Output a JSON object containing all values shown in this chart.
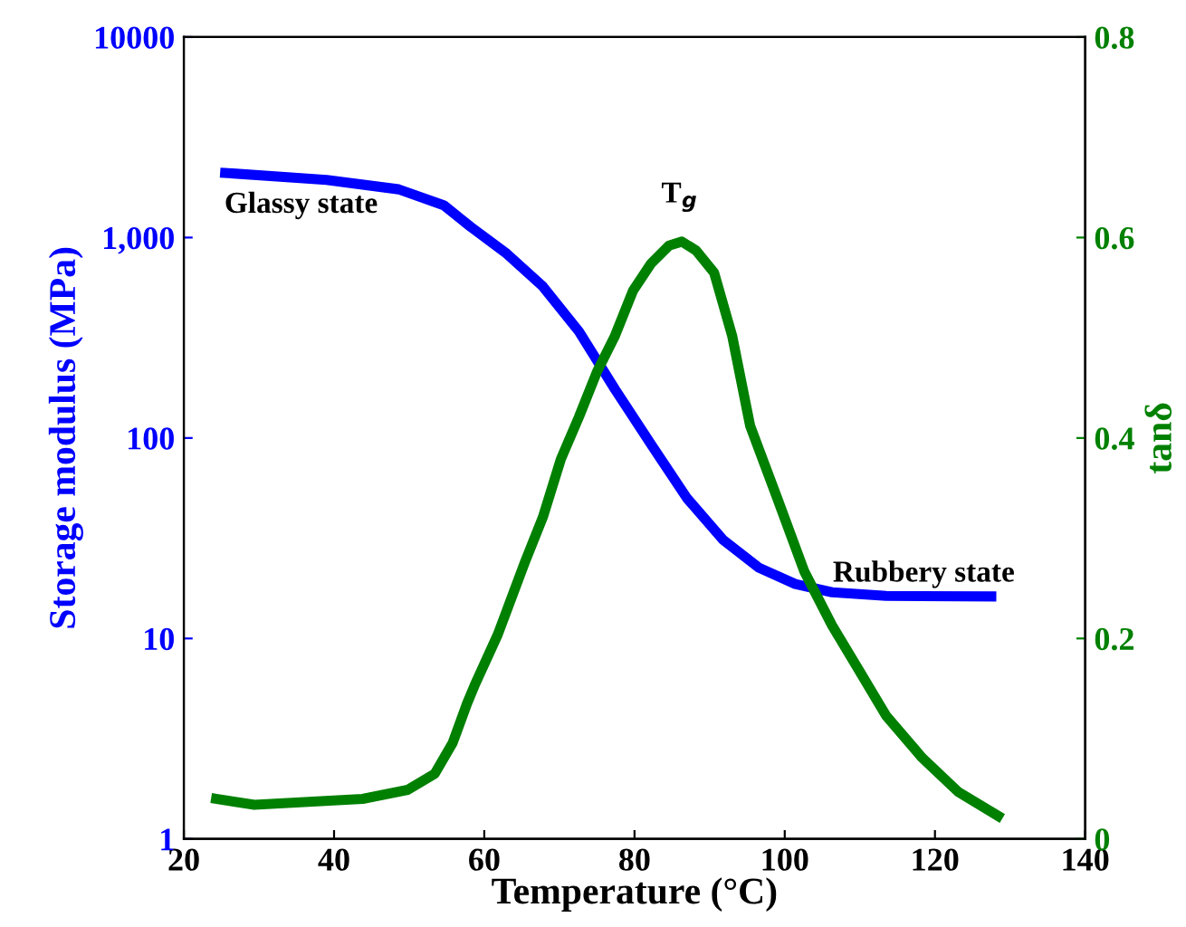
{
  "chart_data": {
    "type": "line",
    "xlabel": "Temperature (°C)",
    "ylabel": "Storage modulus (MPa)",
    "y2label": "tanδ",
    "log": "y",
    "grid": false,
    "legend": false,
    "marker": "none",
    "line_style": "solid",
    "xlim": [
      20,
      140
    ],
    "xticks": [
      20,
      40,
      60,
      80,
      100,
      120,
      140
    ],
    "ylim": [
      1,
      10000
    ],
    "yticks": [
      1,
      10,
      100,
      {
        "value": 1000,
        "label": "1,000"
      },
      10000
    ],
    "y2lim": [
      0,
      0.8
    ],
    "y2ticks": [
      0,
      0.2,
      0.4,
      0.6,
      0.8
    ],
    "series": [
      {
        "color": "#0000ff",
        "x": [
          25.5,
          39,
          48.6,
          54.6,
          58.2,
          63,
          67.8,
          72.6,
          77.4,
          82.2,
          87,
          91.8,
          96.6,
          101.4,
          106.3,
          113.5,
          127.5
        ],
        "values": [
          2100,
          1940,
          1740,
          1450,
          1130,
          830,
          570,
          340,
          175,
          93,
          50,
          31,
          22.5,
          18.7,
          17,
          16.3,
          16.2
        ]
      },
      {
        "color": "#008000",
        "axis": "y2",
        "x": [
          24.3,
          29.4,
          43.8,
          49.8,
          53.4,
          55.8,
          57.7,
          58.7,
          61.8,
          65.4,
          67.8,
          70.2,
          72.6,
          75,
          77.4,
          79.8,
          82.2,
          84.6,
          86.3,
          88.2,
          90.6,
          93,
          95.4,
          99,
          102.6,
          106.3,
          109.9,
          113.5,
          118.3,
          123.1,
          128.4
        ],
        "values": [
          0.04,
          0.034,
          0.04,
          0.049,
          0.065,
          0.096,
          0.135,
          0.153,
          0.204,
          0.276,
          0.321,
          0.379,
          0.421,
          0.466,
          0.502,
          0.547,
          0.574,
          0.592,
          0.596,
          0.587,
          0.565,
          0.502,
          0.412,
          0.34,
          0.267,
          0.213,
          0.168,
          0.123,
          0.081,
          0.047,
          0.023
        ]
      }
    ],
    "annotations": [
      "Glassy state",
      "T$_{g}$",
      "Rubbery state"
    ]
  }
}
